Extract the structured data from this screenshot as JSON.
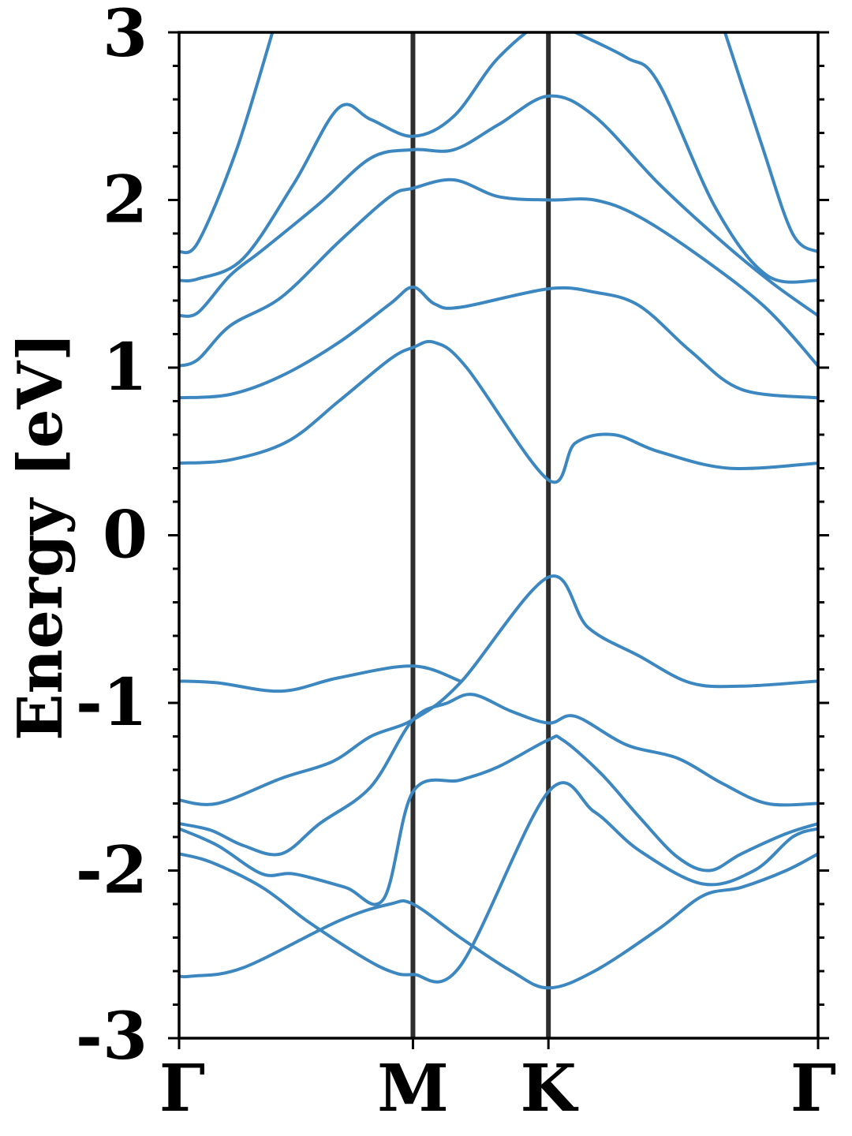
{
  "chart_data": {
    "type": "line",
    "title": "",
    "xlabel": "",
    "ylabel": "Energy [eV]",
    "ylim": [
      -3,
      3
    ],
    "xlim": [
      0,
      1
    ],
    "grid": false,
    "legend": "none",
    "y_ticks": [
      "-3",
      "-2",
      "-1",
      "0",
      "1",
      "2",
      "3"
    ],
    "y_tick_values": [
      -3,
      -2,
      -1,
      0,
      1,
      2,
      3
    ],
    "y_minor_step": 0.2,
    "x_ticks": [
      {
        "label": "Γ",
        "x": 0.0
      },
      {
        "label": "M",
        "x": 0.366
      },
      {
        "label": "K",
        "x": 0.578
      },
      {
        "label": "Γ",
        "x": 1.0
      }
    ],
    "line_color": "#3d87c0",
    "divider_color": "#2e2e2e",
    "series": [
      {
        "values": [
          [
            0.0,
            -2.63
          ],
          [
            0.02,
            -2.63
          ],
          [
            0.1,
            -2.58
          ],
          [
            0.25,
            -2.3
          ],
          [
            0.33,
            -2.2
          ],
          [
            0.366,
            -2.2
          ],
          [
            0.44,
            -2.4
          ],
          [
            0.52,
            -2.6
          ],
          [
            0.578,
            -2.7
          ],
          [
            0.65,
            -2.6
          ],
          [
            0.75,
            -2.35
          ],
          [
            0.82,
            -2.15
          ],
          [
            0.88,
            -2.1
          ],
          [
            0.95,
            -2.0
          ],
          [
            1.0,
            -1.9
          ]
        ]
      },
      {
        "values": [
          [
            0.0,
            -1.9
          ],
          [
            0.05,
            -1.95
          ],
          [
            0.13,
            -2.1
          ],
          [
            0.2,
            -2.3
          ],
          [
            0.28,
            -2.5
          ],
          [
            0.33,
            -2.6
          ],
          [
            0.366,
            -2.62
          ],
          [
            0.44,
            -2.57
          ],
          [
            0.578,
            -1.53
          ],
          [
            0.65,
            -1.65
          ],
          [
            0.72,
            -1.88
          ],
          [
            0.82,
            -2.08
          ],
          [
            0.9,
            -2.0
          ],
          [
            0.96,
            -1.8
          ],
          [
            1.0,
            -1.75
          ]
        ]
      },
      {
        "values": [
          [
            0.0,
            -1.75
          ],
          [
            0.06,
            -1.85
          ],
          [
            0.13,
            -2.02
          ],
          [
            0.18,
            -2.02
          ],
          [
            0.26,
            -2.1
          ],
          [
            0.32,
            -2.17
          ],
          [
            0.366,
            -1.53
          ],
          [
            0.44,
            -1.46
          ],
          [
            0.5,
            -1.38
          ],
          [
            0.578,
            -1.22
          ],
          [
            0.6,
            -1.22
          ],
          [
            0.66,
            -1.42
          ],
          [
            0.72,
            -1.68
          ],
          [
            0.78,
            -1.92
          ],
          [
            0.83,
            -2.0
          ],
          [
            0.88,
            -1.9
          ],
          [
            0.95,
            -1.78
          ],
          [
            1.0,
            -1.72
          ]
        ]
      },
      {
        "values": [
          [
            0.0,
            -1.72
          ],
          [
            0.05,
            -1.76
          ],
          [
            0.1,
            -1.85
          ],
          [
            0.16,
            -1.9
          ],
          [
            0.22,
            -1.72
          ],
          [
            0.3,
            -1.5
          ],
          [
            0.366,
            -1.1
          ],
          [
            0.42,
            -1.0
          ],
          [
            0.46,
            -0.95
          ],
          [
            0.52,
            -1.05
          ],
          [
            0.578,
            -1.12
          ],
          [
            0.62,
            -1.08
          ],
          [
            0.7,
            -1.25
          ],
          [
            0.78,
            -1.33
          ],
          [
            0.85,
            -1.48
          ],
          [
            0.92,
            -1.6
          ],
          [
            1.0,
            -1.6
          ]
        ]
      },
      {
        "values": [
          [
            0.0,
            -1.58
          ],
          [
            0.06,
            -1.6
          ],
          [
            0.16,
            -1.45
          ],
          [
            0.24,
            -1.35
          ],
          [
            0.3,
            -1.2
          ],
          [
            0.366,
            -1.1
          ],
          [
            0.44,
            -0.88
          ],
          [
            0.578,
            -0.25
          ],
          [
            0.64,
            -0.55
          ],
          [
            0.72,
            -0.72
          ],
          [
            0.8,
            -0.88
          ],
          [
            0.88,
            -0.9
          ],
          [
            1.0,
            -0.87
          ]
        ]
      },
      {
        "values": [
          [
            0.0,
            -0.87
          ],
          [
            0.06,
            -0.88
          ],
          [
            0.16,
            -0.93
          ],
          [
            0.25,
            -0.85
          ],
          [
            0.366,
            -0.78
          ],
          [
            0.44,
            -0.87
          ]
        ]
      },
      {
        "values": [
          [
            0.0,
            0.43
          ],
          [
            0.08,
            0.45
          ],
          [
            0.17,
            0.56
          ],
          [
            0.25,
            0.8
          ],
          [
            0.33,
            1.05
          ],
          [
            0.366,
            1.12
          ],
          [
            0.4,
            1.15
          ],
          [
            0.45,
            1.0
          ],
          [
            0.578,
            0.33
          ],
          [
            0.62,
            0.55
          ],
          [
            0.68,
            0.6
          ],
          [
            0.75,
            0.5
          ],
          [
            0.86,
            0.4
          ],
          [
            1.0,
            0.43
          ]
        ]
      },
      {
        "values": [
          [
            0.0,
            0.82
          ],
          [
            0.08,
            0.84
          ],
          [
            0.16,
            0.95
          ],
          [
            0.25,
            1.15
          ],
          [
            0.33,
            1.38
          ],
          [
            0.366,
            1.48
          ],
          [
            0.4,
            1.38
          ],
          [
            0.44,
            1.36
          ],
          [
            0.578,
            1.47
          ],
          [
            0.65,
            1.45
          ],
          [
            0.72,
            1.37
          ],
          [
            0.8,
            1.1
          ],
          [
            0.88,
            0.87
          ],
          [
            1.0,
            0.82
          ]
        ]
      },
      {
        "values": [
          [
            0.0,
            1.01
          ],
          [
            0.03,
            1.05
          ],
          [
            0.08,
            1.25
          ],
          [
            0.16,
            1.42
          ],
          [
            0.25,
            1.75
          ],
          [
            0.33,
            2.02
          ],
          [
            0.366,
            2.07
          ],
          [
            0.43,
            2.12
          ],
          [
            0.5,
            2.02
          ],
          [
            0.578,
            2.0
          ],
          [
            0.65,
            2.0
          ],
          [
            0.72,
            1.9
          ],
          [
            0.82,
            1.65
          ],
          [
            0.92,
            1.35
          ],
          [
            1.0,
            1.01
          ]
        ]
      },
      {
        "values": [
          [
            0.0,
            1.31
          ],
          [
            0.03,
            1.33
          ],
          [
            0.08,
            1.55
          ],
          [
            0.13,
            1.7
          ],
          [
            0.22,
            1.98
          ],
          [
            0.3,
            2.25
          ],
          [
            0.366,
            2.3
          ],
          [
            0.43,
            2.3
          ],
          [
            0.5,
            2.45
          ],
          [
            0.578,
            2.62
          ],
          [
            0.65,
            2.5
          ],
          [
            0.75,
            2.1
          ],
          [
            0.85,
            1.75
          ],
          [
            0.93,
            1.5
          ],
          [
            1.0,
            1.31
          ]
        ]
      },
      {
        "values": [
          [
            0.0,
            1.52
          ],
          [
            0.03,
            1.53
          ],
          [
            0.1,
            1.65
          ],
          [
            0.18,
            2.1
          ],
          [
            0.25,
            2.55
          ],
          [
            0.3,
            2.48
          ],
          [
            0.366,
            2.38
          ],
          [
            0.43,
            2.5
          ],
          [
            0.5,
            2.85
          ],
          [
            0.578,
            3.08
          ],
          [
            0.62,
            3.0
          ],
          [
            0.7,
            2.85
          ],
          [
            0.75,
            2.7
          ],
          [
            0.84,
            1.95
          ],
          [
            0.92,
            1.55
          ],
          [
            1.0,
            1.52
          ]
        ]
      },
      {
        "values": [
          [
            0.0,
            1.69
          ],
          [
            0.03,
            1.75
          ],
          [
            0.09,
            2.3
          ],
          [
            0.15,
            3.05
          ]
        ]
      },
      {
        "values": [
          [
            0.85,
            3.05
          ],
          [
            0.91,
            2.35
          ],
          [
            0.96,
            1.8
          ],
          [
            1.0,
            1.69
          ]
        ]
      }
    ]
  }
}
